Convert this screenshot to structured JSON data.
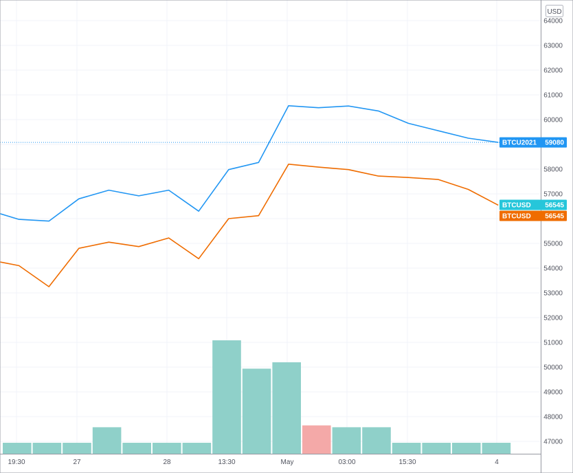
{
  "chart_data": {
    "type": "line",
    "currency_label": "USD",
    "x_tick_labels": [
      "19:30",
      "27",
      "28",
      "13:30",
      "May",
      "03:00",
      "15:30",
      "4"
    ],
    "y_ticks": [
      47000,
      48000,
      49000,
      50000,
      51000,
      52000,
      53000,
      54000,
      55000,
      56000,
      57000,
      58000,
      59000,
      60000,
      61000,
      62000,
      63000,
      64000
    ],
    "ylim": [
      46700,
      64200
    ],
    "grid": true,
    "series": [
      {
        "name": "BTCU2021",
        "color": "#2196f3",
        "values": [
          56200,
          55970,
          55900,
          56800,
          57150,
          56920,
          57150,
          56300,
          57980,
          58270,
          60560,
          60480,
          60550,
          60350,
          59850,
          59550,
          59250,
          59080
        ],
        "last_value": "59080",
        "price_line": true
      },
      {
        "name": "BTCUSD",
        "color": "#ef6c00",
        "values": [
          54250,
          54100,
          53250,
          54800,
          55050,
          54870,
          55220,
          54380,
          56000,
          56120,
          58200,
          58080,
          57980,
          57720,
          57660,
          57580,
          57180,
          56545
        ],
        "last_value": "56545"
      }
    ],
    "extra_tags": [
      {
        "name": "BTCUSD",
        "value": "56545",
        "color": "#26c6da"
      }
    ],
    "volume": {
      "up_color": "#8fd0c9",
      "down_color": "#f4a9a8",
      "bars": [
        {
          "level": 0.06,
          "dir": "up"
        },
        {
          "level": 0.06,
          "dir": "up"
        },
        {
          "level": 0.06,
          "dir": "up"
        },
        {
          "level": 0.145,
          "dir": "up"
        },
        {
          "level": 0.06,
          "dir": "up"
        },
        {
          "level": 0.06,
          "dir": "up"
        },
        {
          "level": 0.06,
          "dir": "up"
        },
        {
          "level": 0.62,
          "dir": "up"
        },
        {
          "level": 0.465,
          "dir": "up"
        },
        {
          "level": 0.5,
          "dir": "up"
        },
        {
          "level": 0.155,
          "dir": "down"
        },
        {
          "level": 0.145,
          "dir": "up"
        },
        {
          "level": 0.145,
          "dir": "up"
        },
        {
          "level": 0.06,
          "dir": "up"
        },
        {
          "level": 0.06,
          "dir": "up"
        },
        {
          "level": 0.06,
          "dir": "up"
        },
        {
          "level": 0.06,
          "dir": "up"
        }
      ]
    }
  }
}
